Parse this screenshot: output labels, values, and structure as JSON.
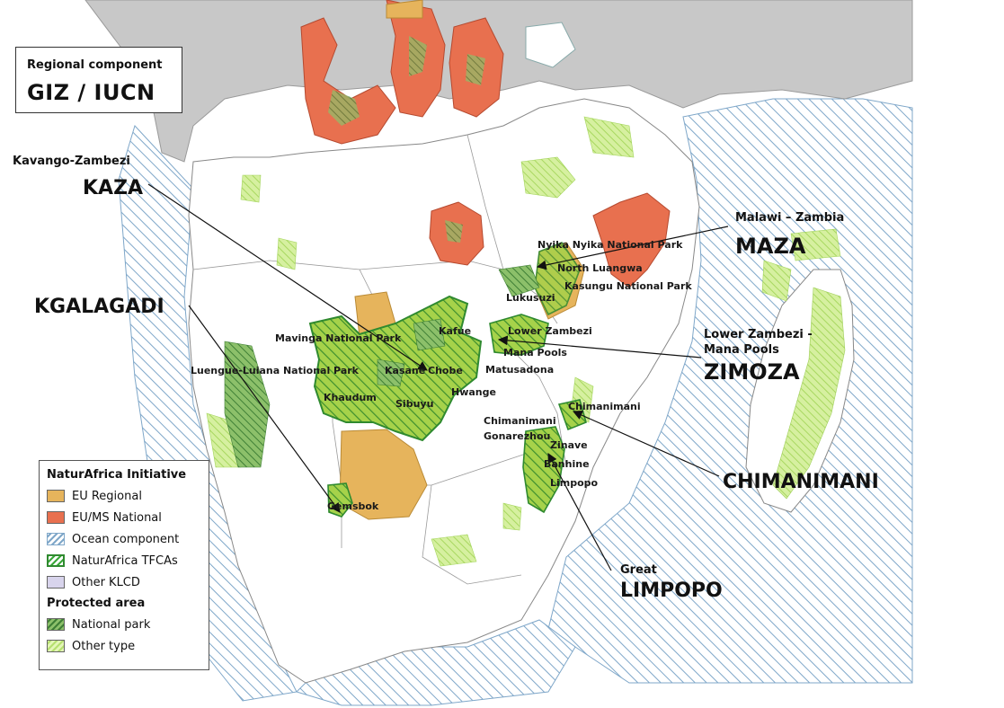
{
  "regional_component": {
    "label": "Regional component",
    "title": "GIZ / IUCN"
  },
  "tfca_callouts": [
    {
      "id": "kaza",
      "subtitle": "Kavango-Zambezi",
      "title": "KAZA"
    },
    {
      "id": "kgalagadi",
      "subtitle": "",
      "title": "KGALAGADI"
    },
    {
      "id": "maza",
      "subtitle": "Malawi – Zambia",
      "title": "MAZA"
    },
    {
      "id": "zimoza",
      "subtitle_line1": "Lower Zambezi -",
      "subtitle_line2": "Mana Pools",
      "title": "ZIMOZA"
    },
    {
      "id": "chimanimani",
      "subtitle": "",
      "title": "CHIMANIMANI"
    },
    {
      "id": "limpopo",
      "subtitle": "Great",
      "title": "LIMPOPO"
    }
  ],
  "place_labels": [
    "Nyika Nyika National Park",
    "North Luangwa",
    "Kasungu National Park",
    "Lukusuzi",
    "Lower Zambezi",
    "Mana Pools",
    "Matusadona",
    "Mavinga National Park",
    "Kafue",
    "Luengue-Luiana National Park",
    "Kasane",
    "Chobe",
    "Hwange",
    "Khaudum",
    "Sibuyu",
    "Chimanimani",
    "Chimanimani",
    "Gonarezhou",
    "Zinave",
    "Banhine",
    "Limpopo",
    "Gemsbok"
  ],
  "legend": {
    "initiative_title": "NaturAfrica Initiative",
    "initiative_items": [
      {
        "label": "EU Regional",
        "color": "#e6b45c"
      },
      {
        "label": "EU/MS National",
        "color": "#e8704f"
      },
      {
        "label": "Ocean component",
        "color": "#7fa7c9"
      },
      {
        "label": "NaturAfrica TFCAs",
        "color": "#3aa83a"
      },
      {
        "label": "Other KLCD",
        "color": "#d8d4ec"
      }
    ],
    "protected_title": "Protected area",
    "protected_items": [
      {
        "label": "National park",
        "color": "#6fae55"
      },
      {
        "label": "Other type",
        "color": "#c6e88a"
      }
    ]
  },
  "colors": {
    "land": "#ffffff",
    "other_countries": "#c8c8c8",
    "eu_regional": "#e6b45c",
    "eu_ms_national": "#e8704f",
    "tfca": "#9ccc3c",
    "tfca_border": "#2f8a2f",
    "ocean_hatch": "#7fa7c9",
    "national_park": "#5a9e4a",
    "other_protected": "#c6e88a"
  }
}
